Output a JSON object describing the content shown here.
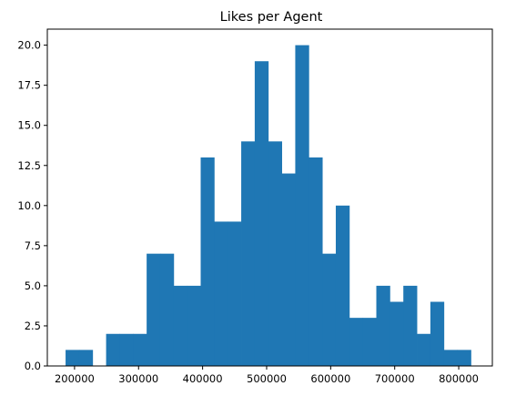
{
  "chart_data": {
    "type": "bar",
    "title": "Likes per Agent",
    "xlabel": "",
    "ylabel": "",
    "grid": false,
    "color": "#1f77b4",
    "xlim": [
      157500,
      852500
    ],
    "ylim": [
      0,
      21
    ],
    "x_ticks": [
      200000,
      300000,
      400000,
      500000,
      600000,
      700000,
      800000
    ],
    "y_ticks": [
      0.0,
      2.5,
      5.0,
      7.5,
      10.0,
      12.5,
      15.0,
      17.5,
      20.0
    ],
    "bins": {
      "start": 186000,
      "width": 21100,
      "counts": [
        1,
        1,
        0,
        2,
        2,
        2,
        7,
        7,
        5,
        5,
        13,
        9,
        9,
        14,
        19,
        14,
        12,
        20,
        13,
        7,
        10,
        3,
        3,
        5,
        4,
        5,
        2,
        4,
        1,
        1
      ]
    }
  }
}
